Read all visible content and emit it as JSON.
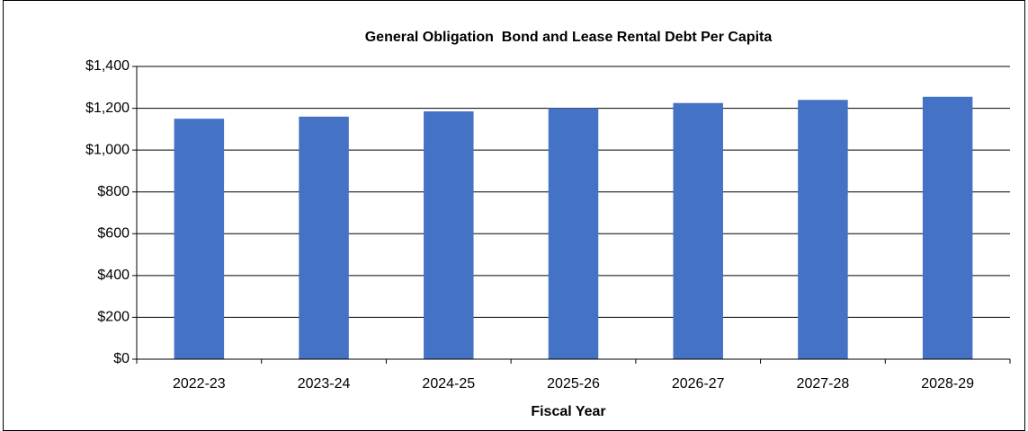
{
  "chart_data": {
    "type": "bar",
    "title": "General Obligation  Bond and Lease Rental Debt Per Capita",
    "x_label": "Fiscal Year",
    "categories": [
      "2022-23",
      "2023-24",
      "2024-25",
      "2025-26",
      "2026-27",
      "2027-28",
      "2028-29"
    ],
    "values": [
      1150,
      1160,
      1185,
      1200,
      1225,
      1240,
      1255
    ],
    "color": "#4472c4",
    "ylim": [
      0,
      1400
    ],
    "yticks": [
      {
        "value": 0,
        "label": "$0"
      },
      {
        "value": 200,
        "label": "$200"
      },
      {
        "value": 400,
        "label": "$400"
      },
      {
        "value": 600,
        "label": "$600"
      },
      {
        "value": 800,
        "label": "$800"
      },
      {
        "value": 1000,
        "label": "$1,000"
      },
      {
        "value": 1200,
        "label": "$1,200"
      },
      {
        "value": 1400,
        "label": "$1,400"
      }
    ],
    "grid": true
  }
}
